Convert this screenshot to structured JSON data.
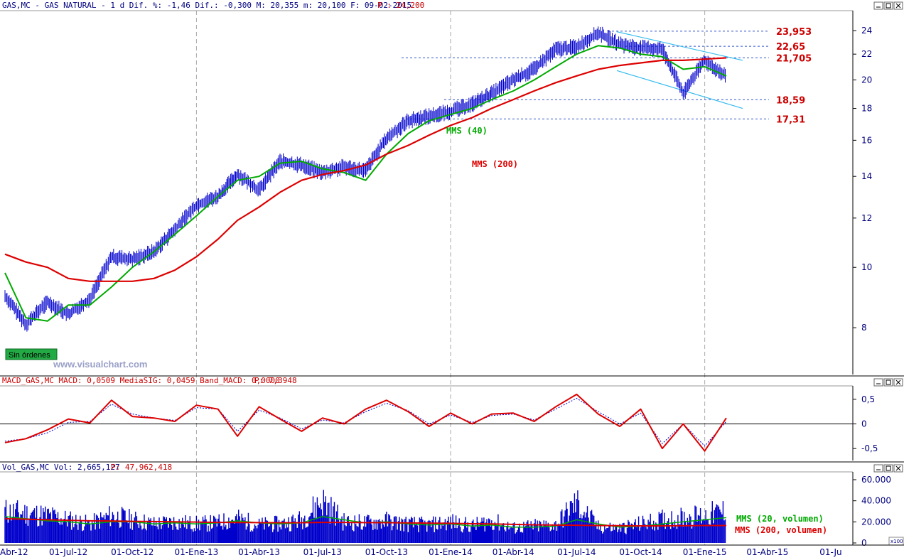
{
  "header": {
    "price": "GAS,MC - GAS NATURAL -  1 d Dif. %: -1,46 Dif.: -0,300 M: 20,355 m: 20,100 F: 09-02-2015",
    "price_p": "P : 24,200",
    "macd": "MACD_GAS,MC MACD: 0,0509 MediaSIG: 0,0459 Band_MACD: 0,0000",
    "macd_p": "P: 7,3948",
    "vol": "Vol_GAS,MC Vol: 2,665,127",
    "vol_p": "P: 47,962,418"
  },
  "watermark": "www.visualchart.com",
  "badge": "Sin órdenes",
  "labels": {
    "mms40": "MMS (40)",
    "mms200": "MMS (200)",
    "vol20": "MMS (20, volumen)",
    "vol200": "MMS (200, volumen)",
    "x100": "x100"
  },
  "colors": {
    "price": "#0000cc",
    "mms40": "#00aa00",
    "mms200": "#dd0000",
    "signal": "#0000cc",
    "level": "#cc0000",
    "channel": "#33bbee",
    "axis_text": "#000080"
  },
  "chart_data": [
    {
      "type": "line",
      "panel": "price",
      "log_scale": true,
      "ylim": [
        6.8,
        25.5
      ],
      "yticks": [
        8,
        10,
        12,
        14,
        16,
        18,
        20,
        22,
        24
      ],
      "xticks": [
        "Abr-12",
        "01-Jul-12",
        "01-Oct-12",
        "01-Ene-13",
        "01-Abr-13",
        "01-Jul-13",
        "01-Oct-13",
        "01-Ene-14",
        "01-Abr-14",
        "01-Jul-14",
        "01-Oct-14",
        "01-Ene-15",
        "01-Abr-15",
        "01-Ju"
      ],
      "x": [
        "2012-04-01",
        "2012-05-01",
        "2012-06-01",
        "2012-07-01",
        "2012-08-01",
        "2012-09-01",
        "2012-10-01",
        "2012-11-01",
        "2012-12-01",
        "2013-01-01",
        "2013-02-01",
        "2013-03-01",
        "2013-04-01",
        "2013-05-01",
        "2013-06-01",
        "2013-07-01",
        "2013-08-01",
        "2013-09-01",
        "2013-10-01",
        "2013-11-01",
        "2013-12-01",
        "2014-01-01",
        "2014-02-01",
        "2014-03-01",
        "2014-04-01",
        "2014-05-01",
        "2014-06-01",
        "2014-07-01",
        "2014-08-01",
        "2014-09-01",
        "2014-10-01",
        "2014-11-01",
        "2014-12-01",
        "2015-01-01",
        "2015-02-01"
      ],
      "series": [
        {
          "name": "GAS,MC",
          "values": [
            9.0,
            8.1,
            8.8,
            8.4,
            8.9,
            10.4,
            10.3,
            10.6,
            11.5,
            12.6,
            13.0,
            14.1,
            13.3,
            14.8,
            14.6,
            14.2,
            14.5,
            14.3,
            16.1,
            17.2,
            17.5,
            17.8,
            18.3,
            19.0,
            20.0,
            20.8,
            22.4,
            22.6,
            23.8,
            22.8,
            22.5,
            22.4,
            19.0,
            21.5,
            20.2
          ]
        },
        {
          "name": "MMS (40)",
          "values": [
            9.8,
            8.3,
            8.2,
            8.7,
            8.7,
            9.3,
            10.0,
            10.6,
            11.3,
            12.1,
            13.0,
            13.8,
            14.0,
            14.7,
            14.8,
            14.4,
            14.2,
            13.8,
            15.2,
            16.4,
            17.2,
            17.6,
            18.0,
            18.6,
            19.2,
            20.0,
            21.0,
            22.0,
            22.7,
            22.5,
            22.0,
            21.8,
            20.8,
            21.0,
            20.3
          ]
        },
        {
          "name": "MMS (200)",
          "values": [
            10.5,
            10.2,
            10.0,
            9.6,
            9.5,
            9.5,
            9.5,
            9.6,
            9.9,
            10.4,
            11.1,
            11.9,
            12.5,
            13.2,
            13.8,
            14.1,
            14.3,
            14.6,
            15.2,
            15.7,
            16.3,
            16.9,
            17.4,
            18.0,
            18.6,
            19.2,
            19.8,
            20.3,
            20.8,
            21.1,
            21.3,
            21.5,
            21.5,
            21.6,
            21.7
          ]
        }
      ],
      "levels": [
        23.953,
        22.65,
        21.705,
        18.59,
        17.31
      ],
      "level_labels": [
        "23,953",
        "22,65",
        "21,705",
        "18,59",
        "17,31"
      ]
    },
    {
      "type": "line",
      "panel": "macd",
      "ylim": [
        -0.7,
        0.7
      ],
      "yticks": [
        0.5,
        0,
        -0.5
      ],
      "ytick_labels": [
        "0,5",
        "0",
        "-0,5"
      ],
      "x": [
        "2012-04-01",
        "2012-05-01",
        "2012-06-01",
        "2012-07-01",
        "2012-08-01",
        "2012-09-01",
        "2012-10-01",
        "2012-11-01",
        "2012-12-01",
        "2013-01-01",
        "2013-02-01",
        "2013-03-01",
        "2013-04-01",
        "2013-05-01",
        "2013-06-01",
        "2013-07-01",
        "2013-08-01",
        "2013-09-01",
        "2013-10-01",
        "2013-11-01",
        "2013-12-01",
        "2014-01-01",
        "2014-02-01",
        "2014-03-01",
        "2014-04-01",
        "2014-05-01",
        "2014-06-01",
        "2014-07-01",
        "2014-08-01",
        "2014-09-01",
        "2014-10-01",
        "2014-11-01",
        "2014-12-01",
        "2015-01-01",
        "2015-02-01"
      ],
      "series": [
        {
          "name": "MACD",
          "values": [
            -0.38,
            -0.3,
            -0.12,
            0.1,
            0.02,
            0.48,
            0.15,
            0.12,
            0.05,
            0.38,
            0.3,
            -0.25,
            0.35,
            0.1,
            -0.15,
            0.12,
            0.0,
            0.3,
            0.48,
            0.25,
            -0.05,
            0.22,
            0.0,
            0.2,
            0.22,
            0.05,
            0.35,
            0.6,
            0.2,
            -0.05,
            0.3,
            -0.5,
            0.0,
            -0.55,
            0.12
          ]
        },
        {
          "name": "MediaSIG",
          "values": [
            -0.35,
            -0.3,
            -0.18,
            0.03,
            0.05,
            0.4,
            0.2,
            0.12,
            0.07,
            0.33,
            0.3,
            -0.15,
            0.28,
            0.12,
            -0.1,
            0.08,
            0.02,
            0.25,
            0.42,
            0.27,
            0.0,
            0.18,
            0.03,
            0.17,
            0.2,
            0.08,
            0.3,
            0.52,
            0.25,
            0.0,
            0.22,
            -0.4,
            0.0,
            -0.45,
            0.05
          ]
        }
      ]
    },
    {
      "type": "bar",
      "panel": "volume",
      "ylim": [
        0,
        60000
      ],
      "yticks": [
        0,
        20000,
        40000,
        60000
      ],
      "ytick_labels": [
        "0",
        "20.000",
        "40.000",
        "60.000"
      ],
      "x": [
        "2012-04-01",
        "2012-05-01",
        "2012-06-01",
        "2012-07-01",
        "2012-08-01",
        "2012-09-01",
        "2012-10-01",
        "2012-11-01",
        "2012-12-01",
        "2013-01-01",
        "2013-02-01",
        "2013-03-01",
        "2013-04-01",
        "2013-05-01",
        "2013-06-01",
        "2013-07-01",
        "2013-08-01",
        "2013-09-01",
        "2013-10-01",
        "2013-11-01",
        "2013-12-01",
        "2014-01-01",
        "2014-02-01",
        "2014-03-01",
        "2014-04-01",
        "2014-05-01",
        "2014-06-01",
        "2014-07-01",
        "2014-08-01",
        "2014-09-01",
        "2014-10-01",
        "2014-11-01",
        "2014-12-01",
        "2015-01-01",
        "2015-02-01"
      ],
      "series": [
        {
          "name": "Vol",
          "values": [
            30000,
            28000,
            26000,
            22000,
            18000,
            26000,
            22000,
            18000,
            20000,
            18000,
            19000,
            23000,
            17000,
            18000,
            22000,
            40000,
            20000,
            19000,
            21000,
            18000,
            17000,
            20000,
            16000,
            21000,
            14000,
            16000,
            17000,
            38000,
            15000,
            14000,
            18000,
            22000,
            24000,
            26000,
            30000
          ]
        },
        {
          "name": "MMS (20, volumen)",
          "values": [
            25000,
            23000,
            21000,
            20000,
            18000,
            20000,
            20000,
            18000,
            19000,
            18000,
            19000,
            21000,
            19000,
            18000,
            19000,
            25000,
            22000,
            19000,
            20000,
            18000,
            17000,
            18000,
            16000,
            17000,
            15000,
            15000,
            16000,
            22000,
            18000,
            15000,
            16000,
            18000,
            20000,
            22000,
            24000
          ]
        },
        {
          "name": "MMS (200, volumen)",
          "values": [
            23000,
            22500,
            22000,
            21500,
            21000,
            20800,
            20500,
            20300,
            20000,
            19800,
            19500,
            19400,
            19300,
            19200,
            19200,
            19500,
            19500,
            19300,
            19200,
            19000,
            18800,
            18600,
            18200,
            18000,
            17600,
            17200,
            16900,
            16800,
            16500,
            16300,
            16200,
            16200,
            16300,
            16500,
            16500
          ]
        }
      ]
    }
  ]
}
